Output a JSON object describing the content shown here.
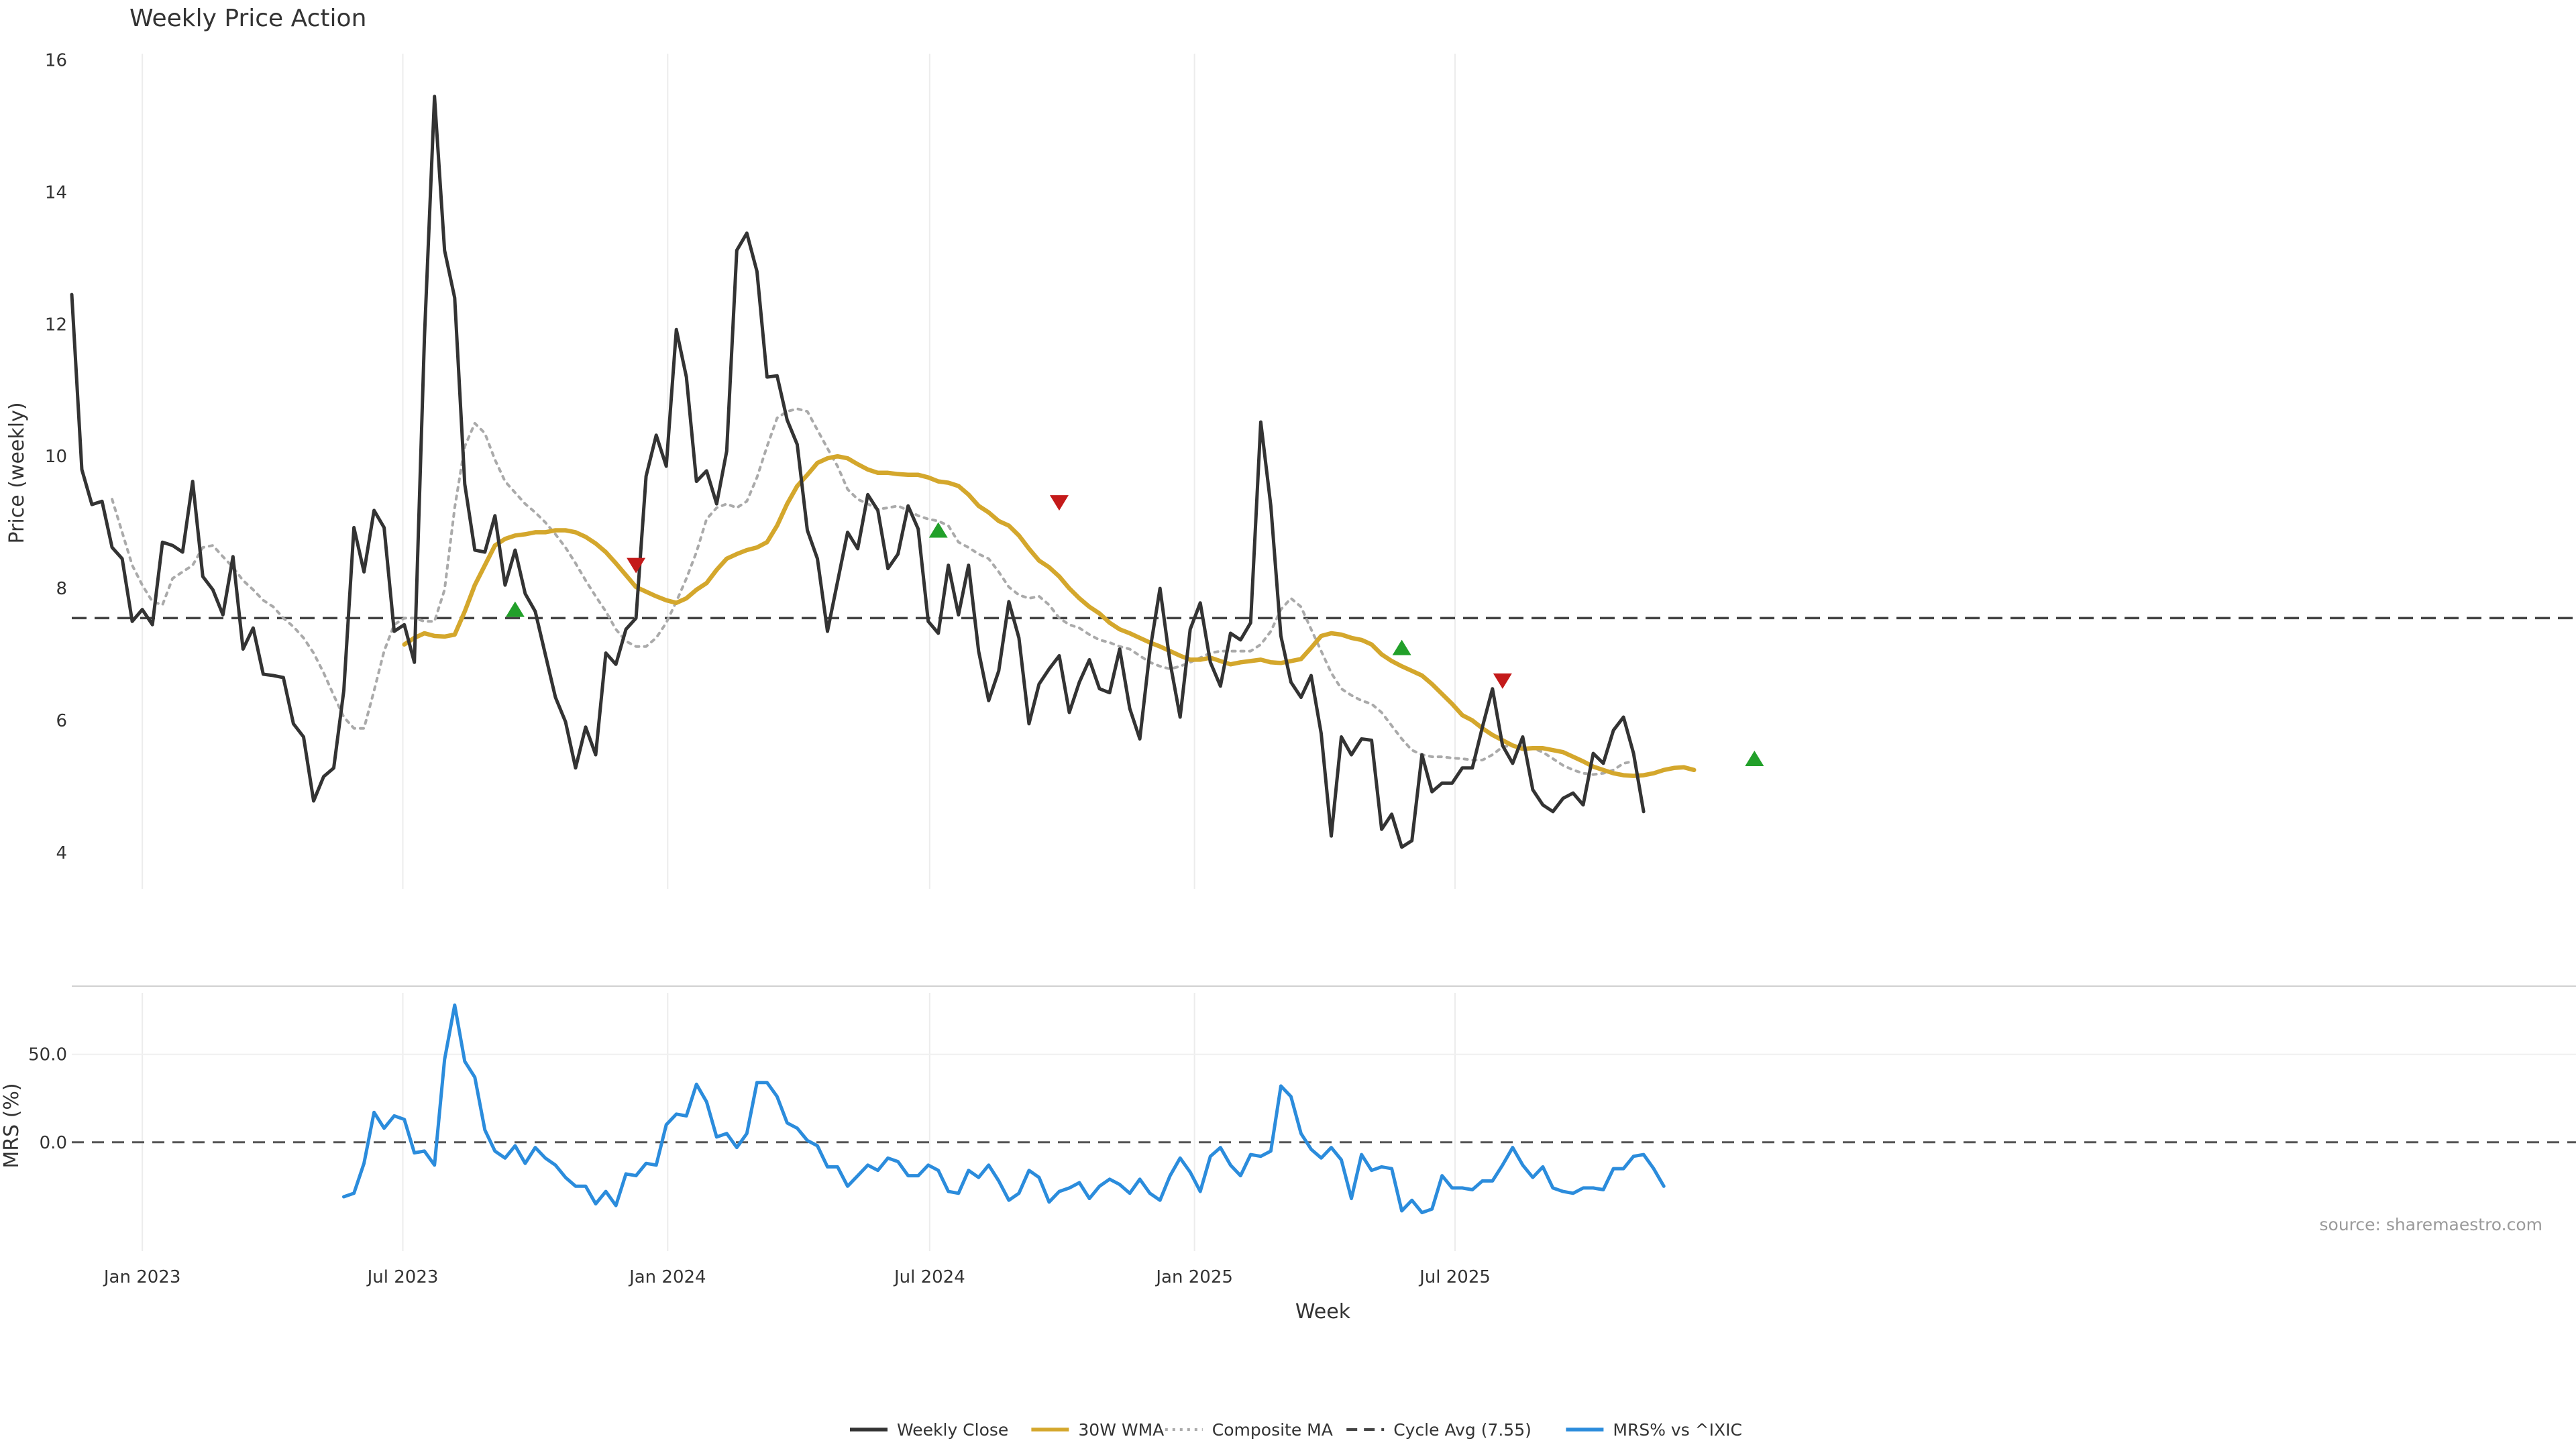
{
  "chart_data": {
    "type": "line",
    "title": "Weekly Price Action",
    "source": "source: sharemaestro.com",
    "xlabel": "Week",
    "x_ticks": [
      "Jan 2023",
      "Jul 2023",
      "Jan 2024",
      "Jul 2024",
      "Jan 2025",
      "Jul 2025"
    ],
    "price_panel": {
      "ylabel": "Price (weekly)",
      "ylim": [
        3.5,
        16.2
      ],
      "y_ticks": [
        4,
        6,
        8,
        10,
        12,
        14,
        16
      ],
      "cycle_avg": 7.55,
      "start_week": "2022-11-13",
      "series": [
        {
          "name": "Weekly Close",
          "color": "#333333",
          "offset": 0,
          "values": [
            12.45,
            9.8,
            9.27,
            9.32,
            8.62,
            8.45,
            7.5,
            7.68,
            7.45,
            8.7,
            8.65,
            8.55,
            9.62,
            8.18,
            7.98,
            7.6,
            8.48,
            7.08,
            7.4,
            6.7,
            6.68,
            6.65,
            5.95,
            5.75,
            4.78,
            5.15,
            5.28,
            6.45,
            8.92,
            8.25,
            9.18,
            8.92,
            7.35,
            7.45,
            6.88,
            11.8,
            15.45,
            13.12,
            12.4,
            9.58,
            8.58,
            8.55,
            9.1,
            8.05,
            8.58,
            7.92,
            7.65,
            7.0,
            6.35,
            5.98,
            5.28,
            5.9,
            5.48,
            7.02,
            6.85,
            7.38,
            7.55,
            9.7,
            10.32,
            9.85,
            11.92,
            11.2,
            9.62,
            9.78,
            9.28,
            10.08,
            13.12,
            13.38,
            12.8,
            11.2,
            11.22,
            10.55,
            10.18,
            8.88,
            8.45,
            7.35,
            8.1,
            8.85,
            8.6,
            9.42,
            9.18,
            8.3,
            8.52,
            9.25,
            8.9,
            7.5,
            7.32,
            8.35,
            7.6,
            8.35,
            7.05,
            6.3,
            6.75,
            7.8,
            7.25,
            5.95,
            6.55,
            6.78,
            6.98,
            6.12,
            6.58,
            6.92,
            6.48,
            6.42,
            7.08,
            6.18,
            5.72,
            7.05,
            8.0,
            6.88,
            6.05,
            7.38,
            7.78,
            6.88,
            6.52,
            7.32,
            7.22,
            7.48,
            10.52,
            9.25,
            7.28,
            6.58,
            6.35,
            6.68,
            5.8,
            4.25,
            5.75,
            5.48,
            5.72,
            5.7,
            4.35,
            4.58,
            4.08,
            4.18,
            5.48,
            4.92,
            5.05,
            5.05,
            5.28,
            5.28,
            5.9,
            6.48,
            5.62,
            5.35,
            5.75,
            4.95,
            4.72,
            4.62,
            4.82,
            4.9,
            4.72,
            5.5,
            5.35,
            5.85,
            6.05,
            5.5,
            4.62
          ]
        },
        {
          "name": "30W WMA",
          "color": "#d4a72c",
          "offset": 33,
          "values": [
            7.15,
            7.25,
            7.32,
            7.28,
            7.27,
            7.3,
            7.65,
            8.05,
            8.35,
            8.65,
            8.75,
            8.8,
            8.82,
            8.85,
            8.85,
            8.88,
            8.88,
            8.85,
            8.78,
            8.68,
            8.55,
            8.38,
            8.2,
            8.02,
            7.95,
            7.88,
            7.82,
            7.78,
            7.85,
            7.98,
            8.08,
            8.28,
            8.45,
            8.52,
            8.58,
            8.62,
            8.7,
            8.95,
            9.28,
            9.55,
            9.72,
            9.9,
            9.97,
            10.0,
            9.97,
            9.88,
            9.8,
            9.75,
            9.75,
            9.73,
            9.72,
            9.72,
            9.68,
            9.62,
            9.6,
            9.55,
            9.42,
            9.25,
            9.15,
            9.02,
            8.95,
            8.8,
            8.6,
            8.42,
            8.32,
            8.18,
            8.0,
            7.85,
            7.72,
            7.62,
            7.48,
            7.38,
            7.32,
            7.25,
            7.18,
            7.12,
            7.05,
            6.98,
            6.92,
            6.92,
            6.95,
            6.9,
            6.85,
            6.88,
            6.9,
            6.92,
            6.88,
            6.87,
            6.9,
            6.93,
            7.1,
            7.28,
            7.32,
            7.3,
            7.25,
            7.22,
            7.15,
            7.0,
            6.9,
            6.82,
            6.75,
            6.68,
            6.55,
            6.4,
            6.25,
            6.08,
            6.0,
            5.88,
            5.78,
            5.7,
            5.62,
            5.57,
            5.58,
            5.58,
            5.55,
            5.52,
            5.45,
            5.38,
            5.3,
            5.25,
            5.2,
            5.17,
            5.16,
            5.17,
            5.2,
            5.25,
            5.28,
            5.29,
            5.25
          ]
        },
        {
          "name": "Composite MA",
          "color": "#aaaaaa",
          "offset": 4,
          "values": [
            9.35,
            8.85,
            8.35,
            8.05,
            7.8,
            7.75,
            8.15,
            8.25,
            8.35,
            8.62,
            8.65,
            8.48,
            8.32,
            8.12,
            7.98,
            7.82,
            7.72,
            7.55,
            7.42,
            7.25,
            7.02,
            6.72,
            6.38,
            6.05,
            5.88,
            5.88,
            6.45,
            7.05,
            7.45,
            7.55,
            7.55,
            7.5,
            7.5,
            7.98,
            9.22,
            10.15,
            10.5,
            10.35,
            9.95,
            9.62,
            9.45,
            9.28,
            9.15,
            9.0,
            8.82,
            8.62,
            8.38,
            8.12,
            7.88,
            7.65,
            7.38,
            7.2,
            7.12,
            7.12,
            7.25,
            7.48,
            7.8,
            8.15,
            8.55,
            9.05,
            9.22,
            9.28,
            9.22,
            9.32,
            9.68,
            10.15,
            10.58,
            10.68,
            10.72,
            10.68,
            10.4,
            10.12,
            9.85,
            9.5,
            9.35,
            9.28,
            9.2,
            9.22,
            9.25,
            9.18,
            9.1,
            9.05,
            9.02,
            8.95,
            8.7,
            8.62,
            8.52,
            8.45,
            8.25,
            8.02,
            7.9,
            7.85,
            7.88,
            7.75,
            7.55,
            7.45,
            7.4,
            7.3,
            7.22,
            7.18,
            7.12,
            7.08,
            6.98,
            6.88,
            6.82,
            6.78,
            6.82,
            6.88,
            6.95,
            7.02,
            7.05,
            7.05,
            7.05,
            7.05,
            7.15,
            7.35,
            7.68,
            7.85,
            7.72,
            7.38,
            7.05,
            6.72,
            6.48,
            6.38,
            6.3,
            6.25,
            6.12,
            5.92,
            5.72,
            5.55,
            5.48,
            5.45,
            5.45,
            5.43,
            5.42,
            5.4,
            5.4,
            5.48,
            5.6,
            5.62,
            5.6,
            5.58,
            5.52,
            5.42,
            5.32,
            5.25,
            5.2,
            5.18,
            5.2,
            5.25,
            5.35,
            5.38
          ]
        }
      ],
      "buy_signals": [
        {
          "week": 44,
          "price": 7.68
        },
        {
          "week": 86,
          "price": 8.88
        },
        {
          "week": 132,
          "price": 7.1
        },
        {
          "week": 167,
          "price": 5.42
        }
      ],
      "sell_signals": [
        {
          "week": 56,
          "price": 8.35
        },
        {
          "week": 98,
          "price": 9.3
        },
        {
          "week": 142,
          "price": 6.6
        }
      ]
    },
    "mrs_panel": {
      "ylabel": "MRS (%)",
      "ylim": [
        -60,
        85
      ],
      "y_ticks": [
        0.0,
        50.0
      ],
      "y_tick_labels": [
        "0.0",
        "50.0"
      ],
      "zero_line": 0,
      "series": [
        {
          "name": "MRS% vs ^IXIC",
          "color": "#2b8cdc",
          "offset": 27,
          "values": [
            -31,
            -29,
            -12,
            17,
            8,
            15,
            13,
            -6,
            -5,
            -13,
            47,
            78,
            46,
            37,
            7,
            -5,
            -9,
            -2,
            -12,
            -3,
            -9,
            -13,
            -20,
            -25,
            -25,
            -35,
            -28,
            -36,
            -18,
            -19,
            -12,
            -13,
            10,
            16,
            15,
            33,
            23,
            3,
            5,
            -3,
            5,
            34,
            34,
            26,
            11,
            8,
            1,
            -2,
            -14,
            -14,
            -25,
            -19,
            -13,
            -16,
            -9,
            -11,
            -19,
            -19,
            -13,
            -16,
            -28,
            -29,
            -16,
            -20,
            -13,
            -22,
            -33,
            -29,
            -16,
            -20,
            -34,
            -28,
            -26,
            -23,
            -32,
            -25,
            -21,
            -24,
            -29,
            -21,
            -29,
            -33,
            -19,
            -9,
            -17,
            -28,
            -8,
            -3,
            -13,
            -19,
            -7,
            -8,
            -5,
            32,
            26,
            5,
            -4,
            -9,
            -3,
            -10,
            -32,
            -7,
            -16,
            -14,
            -15,
            -39,
            -33,
            -40,
            -38,
            -19,
            -26,
            -26,
            -27,
            -22,
            -22,
            -13,
            -3,
            -13,
            -20,
            -14,
            -26,
            -28,
            -29,
            -26,
            -26,
            -27,
            -15,
            -15,
            -8,
            -7,
            -15,
            -25
          ]
        }
      ]
    },
    "legend": [
      {
        "label": "Weekly Close",
        "style": "solid",
        "color": "#333333"
      },
      {
        "label": "30W WMA",
        "style": "solid",
        "color": "#d4a72c"
      },
      {
        "label": "Composite MA",
        "style": "dotted",
        "color": "#aaaaaa"
      },
      {
        "label": "Cycle Avg (7.55)",
        "style": "dashed",
        "color": "#444444"
      },
      {
        "label": "MRS% vs ^IXIC",
        "style": "solid",
        "color": "#2b8cdc"
      }
    ],
    "legend_position": "bottom-center",
    "grid": "vertical-only",
    "colors": {
      "buy": "#22a02a",
      "sell": "#c41a1a"
    }
  }
}
